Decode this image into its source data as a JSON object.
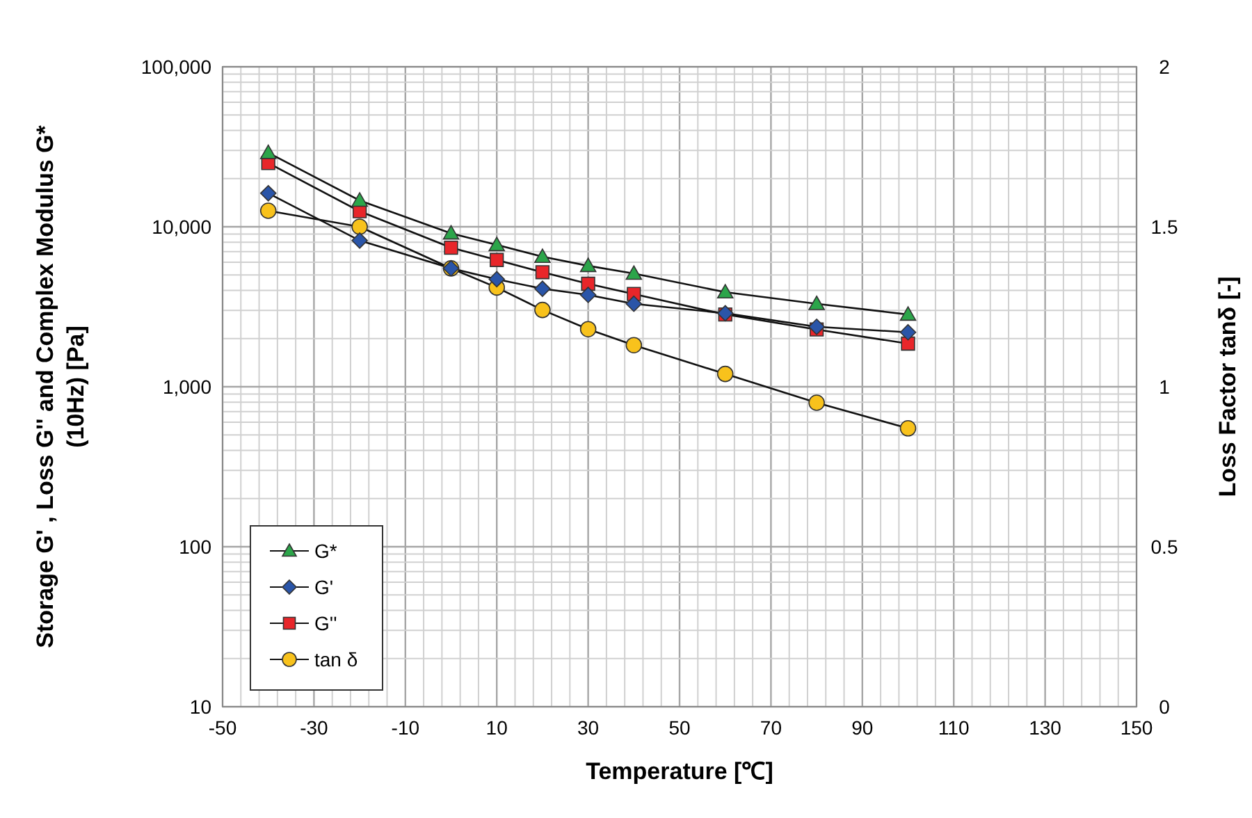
{
  "chart_data": {
    "type": "line",
    "xlabel": "Temperature [℃]",
    "ylabel": "Storage  G' , Loss G'' and  Complex Modulus G*\n(10Hz) [Pa]",
    "y2label": "Loss Factor tanδ [-]",
    "x": [
      -40,
      -20,
      0,
      10,
      20,
      30,
      40,
      60,
      80,
      100
    ],
    "xlim": [
      -50,
      150
    ],
    "xticks": [
      -50,
      -30,
      -10,
      10,
      30,
      50,
      70,
      90,
      110,
      130,
      150
    ],
    "log": "y",
    "ylim": [
      10,
      100000
    ],
    "yticks": [
      {
        "value": 10,
        "label": "10"
      },
      {
        "value": 100,
        "label": "100"
      },
      {
        "value": 1000,
        "label": "1,000"
      },
      {
        "value": 10000,
        "label": "10,000"
      },
      {
        "value": 100000,
        "label": "100,000"
      }
    ],
    "y2lim": [
      0,
      2
    ],
    "y2ticks": [
      0,
      0.5,
      1,
      1.5,
      2
    ],
    "grid": true,
    "legend": "bottom left",
    "series": [
      {
        "name": "G*",
        "color": "#2ca54a",
        "marker": "triangle",
        "values": [
          29000,
          14600,
          9100,
          7700,
          6500,
          5700,
          5100,
          3900,
          3300,
          2830
        ]
      },
      {
        "name": "G'",
        "color": "#2a55a8",
        "marker": "diamond",
        "values": [
          16200,
          8200,
          5500,
          4700,
          4100,
          3750,
          3300,
          2880,
          2370,
          2190
        ]
      },
      {
        "name": "G''",
        "color": "#e8262a",
        "marker": "square",
        "values": [
          25000,
          12500,
          7400,
          6200,
          5200,
          4400,
          3800,
          2830,
          2280,
          1860
        ]
      },
      {
        "name": "tan δ",
        "color": "#f8c21c",
        "marker": "circle",
        "axis": "y2",
        "values": [
          1.55,
          1.5,
          1.37,
          1.31,
          1.24,
          1.18,
          1.13,
          1.04,
          0.95,
          0.87
        ]
      }
    ]
  }
}
